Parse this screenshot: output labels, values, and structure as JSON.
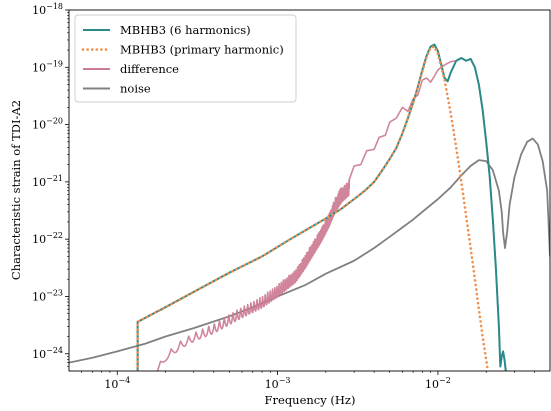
{
  "chart_data": {
    "type": "line",
    "xscale": "log",
    "yscale": "log",
    "xlim": [
      5e-05,
      0.05
    ],
    "ylim": [
      5e-25,
      1e-18
    ],
    "xlabel": "Frequency (Hz)",
    "ylabel": "Characteristic strain of TDI-A2",
    "x_ticks": [
      {
        "value": 0.0001,
        "base": "10",
        "exp": "−4"
      },
      {
        "value": 0.001,
        "base": "10",
        "exp": "−3"
      },
      {
        "value": 0.01,
        "base": "10",
        "exp": "−2"
      }
    ],
    "y_ticks": [
      {
        "value": 1e-24,
        "base": "10",
        "exp": "−24"
      },
      {
        "value": 1e-23,
        "base": "10",
        "exp": "−23"
      },
      {
        "value": 1e-22,
        "base": "10",
        "exp": "−22"
      },
      {
        "value": 1e-21,
        "base": "10",
        "exp": "−21"
      },
      {
        "value": 1e-20,
        "base": "10",
        "exp": "−20"
      },
      {
        "value": 1e-19,
        "base": "10",
        "exp": "−19"
      },
      {
        "value": 1e-18,
        "base": "10",
        "exp": "−18"
      }
    ],
    "legend_position": "top-left",
    "series": [
      {
        "name": "MBHB3 (6 harmonics)",
        "color": "#2a8a8a",
        "style": "solid",
        "points": [
          [
            0.000134,
            5e-25
          ],
          [
            0.000134,
            3.6e-24
          ],
          [
            0.0002,
            6.5e-24
          ],
          [
            0.0003,
            1.2e-23
          ],
          [
            0.0005,
            2.6e-23
          ],
          [
            0.0008,
            5e-23
          ],
          [
            0.0012,
            1e-22
          ],
          [
            0.0016,
            1.6e-22
          ],
          [
            0.002,
            2.3e-22
          ],
          [
            0.0025,
            3.4e-22
          ],
          [
            0.003,
            5e-22
          ],
          [
            0.0035,
            7e-22
          ],
          [
            0.004,
            1e-21
          ],
          [
            0.0045,
            1.6e-21
          ],
          [
            0.005,
            2.5e-21
          ],
          [
            0.0055,
            3.9e-21
          ],
          [
            0.006,
            7e-21
          ],
          [
            0.0065,
            1.3e-20
          ],
          [
            0.007,
            2.4e-20
          ],
          [
            0.0075,
            4.6e-20
          ],
          [
            0.008,
            9e-20
          ],
          [
            0.0085,
            1.6e-19
          ],
          [
            0.009,
            2.3e-19
          ],
          [
            0.0095,
            2.5e-19
          ],
          [
            0.01,
            1.9e-19
          ],
          [
            0.0105,
            1.1e-19
          ],
          [
            0.011,
            6.5e-20
          ],
          [
            0.0115,
            5.7e-20
          ],
          [
            0.012,
            8e-20
          ],
          [
            0.013,
            1.3e-19
          ],
          [
            0.014,
            1.45e-19
          ],
          [
            0.015,
            1.3e-19
          ],
          [
            0.016,
            1.4e-19
          ],
          [
            0.017,
            1e-19
          ],
          [
            0.018,
            5e-20
          ],
          [
            0.019,
            1.8e-20
          ],
          [
            0.02,
            5e-21
          ],
          [
            0.021,
            1.3e-21
          ],
          [
            0.022,
            2.2e-22
          ],
          [
            0.023,
            3e-23
          ],
          [
            0.024,
            3e-24
          ],
          [
            0.0245,
            6e-25
          ],
          [
            0.025,
            9e-25
          ],
          [
            0.0255,
            1.1e-24
          ],
          [
            0.026,
            8e-25
          ],
          [
            0.0265,
            5e-25
          ]
        ]
      },
      {
        "name": "MBHB3 (primary harmonic)",
        "color": "#ef8f4d",
        "style": "dotted",
        "points": [
          [
            0.000134,
            5e-25
          ],
          [
            0.000134,
            3.6e-24
          ],
          [
            0.0002,
            6.5e-24
          ],
          [
            0.0003,
            1.2e-23
          ],
          [
            0.0005,
            2.6e-23
          ],
          [
            0.0008,
            5e-23
          ],
          [
            0.0012,
            1e-22
          ],
          [
            0.0016,
            1.6e-22
          ],
          [
            0.002,
            2.3e-22
          ],
          [
            0.0025,
            3.4e-22
          ],
          [
            0.003,
            5e-22
          ],
          [
            0.0035,
            7e-22
          ],
          [
            0.004,
            1e-21
          ],
          [
            0.0045,
            1.6e-21
          ],
          [
            0.005,
            2.5e-21
          ],
          [
            0.0055,
            3.9e-21
          ],
          [
            0.006,
            7e-21
          ],
          [
            0.0065,
            1.3e-20
          ],
          [
            0.007,
            2.4e-20
          ],
          [
            0.0075,
            4.6e-20
          ],
          [
            0.008,
            8.5e-20
          ],
          [
            0.0085,
            1.5e-19
          ],
          [
            0.009,
            2.2e-19
          ],
          [
            0.0095,
            2.3e-19
          ],
          [
            0.01,
            1.7e-19
          ],
          [
            0.011,
            6e-20
          ],
          [
            0.012,
            1.6e-20
          ],
          [
            0.013,
            4e-21
          ],
          [
            0.014,
            1e-21
          ],
          [
            0.015,
            2.5e-22
          ],
          [
            0.016,
            7e-23
          ],
          [
            0.017,
            2e-23
          ],
          [
            0.018,
            6e-24
          ],
          [
            0.019,
            2e-24
          ],
          [
            0.0205,
            5e-25
          ]
        ]
      },
      {
        "name": "difference",
        "color": "#cc7b93",
        "style": "solid",
        "points": [
          [
            0.00017,
            5e-25
          ],
          [
            0.0002,
            1e-24
          ],
          [
            0.00025,
            1.7e-24
          ],
          [
            0.0003,
            2.3e-24
          ],
          [
            0.0004,
            3.3e-24
          ],
          [
            0.0005,
            4.8e-24
          ],
          [
            0.0006,
            6.5e-24
          ],
          [
            0.0008,
            1e-23
          ],
          [
            0.001,
            1.6e-23
          ],
          [
            0.0013,
            3e-23
          ],
          [
            0.0015,
            5.5e-23
          ],
          [
            0.0017,
            1e-22
          ],
          [
            0.0019,
            1.7e-22
          ],
          [
            0.0021,
            3e-22
          ],
          [
            0.0023,
            5.5e-22
          ],
          [
            0.0025,
            8e-22
          ],
          [
            0.0028,
            1.1e-21
          ],
          [
            0.003,
            1.9e-21
          ],
          [
            0.0033,
            2e-21
          ],
          [
            0.0036,
            3.5e-21
          ],
          [
            0.004,
            3.7e-21
          ],
          [
            0.0043,
            6e-21
          ],
          [
            0.0047,
            6.5e-21
          ],
          [
            0.005,
            1.1e-20
          ],
          [
            0.0055,
            1.3e-20
          ],
          [
            0.006,
            2e-20
          ],
          [
            0.0065,
            1.7e-20
          ],
          [
            0.007,
            2.8e-20
          ],
          [
            0.0075,
            3.3e-20
          ],
          [
            0.008,
            6e-20
          ],
          [
            0.0085,
            6.5e-20
          ],
          [
            0.009,
            5.5e-20
          ],
          [
            0.0095,
            7e-20
          ],
          [
            0.01,
            9e-20
          ],
          [
            0.011,
            1.1e-19
          ],
          [
            0.012,
            1.25e-19
          ],
          [
            0.013,
            1.3e-19
          ],
          [
            0.014,
            1.45e-19
          ],
          [
            0.015,
            1.3e-19
          ],
          [
            0.016,
            1.4e-19
          ],
          [
            0.017,
            1e-19
          ],
          [
            0.018,
            5e-20
          ],
          [
            0.019,
            1.8e-20
          ],
          [
            0.02,
            5e-21
          ],
          [
            0.021,
            1.3e-21
          ],
          [
            0.022,
            2.2e-22
          ],
          [
            0.023,
            3e-23
          ],
          [
            0.024,
            3e-24
          ],
          [
            0.0245,
            6e-25
          ],
          [
            0.025,
            9e-25
          ],
          [
            0.0255,
            1.1e-24
          ],
          [
            0.026,
            8e-25
          ],
          [
            0.0265,
            5e-25
          ]
        ]
      },
      {
        "name": "noise",
        "color": "#808080",
        "style": "solid",
        "points": [
          [
            5e-05,
            7e-25
          ],
          [
            7e-05,
            8.5e-25
          ],
          [
            0.0001,
            1.1e-24
          ],
          [
            0.00015,
            1.5e-24
          ],
          [
            0.0002,
            2e-24
          ],
          [
            0.0003,
            2.8e-24
          ],
          [
            0.0005,
            4.5e-24
          ],
          [
            0.0007,
            6.5e-24
          ],
          [
            0.001,
            1e-23
          ],
          [
            0.0015,
            1.6e-23
          ],
          [
            0.002,
            2.5e-23
          ],
          [
            0.003,
            4.2e-23
          ],
          [
            0.004,
            7e-23
          ],
          [
            0.005,
            1.1e-22
          ],
          [
            0.006,
            1.6e-22
          ],
          [
            0.007,
            2.2e-22
          ],
          [
            0.008,
            3e-22
          ],
          [
            0.01,
            5e-22
          ],
          [
            0.012,
            8e-22
          ],
          [
            0.014,
            1.3e-21
          ],
          [
            0.016,
            1.9e-21
          ],
          [
            0.018,
            2.4e-21
          ],
          [
            0.02,
            2.3e-21
          ],
          [
            0.022,
            1.6e-21
          ],
          [
            0.024,
            7e-22
          ],
          [
            0.025,
            3e-22
          ],
          [
            0.0255,
            1.3e-22
          ],
          [
            0.0262,
            7e-23
          ],
          [
            0.027,
            1.3e-22
          ],
          [
            0.028,
            4e-22
          ],
          [
            0.03,
            1.2e-21
          ],
          [
            0.033,
            3e-21
          ],
          [
            0.036,
            5e-21
          ],
          [
            0.039,
            5.7e-21
          ],
          [
            0.042,
            4.5e-21
          ],
          [
            0.045,
            2.3e-21
          ],
          [
            0.048,
            7e-22
          ],
          [
            0.05,
            5e-23
          ]
        ]
      }
    ]
  }
}
